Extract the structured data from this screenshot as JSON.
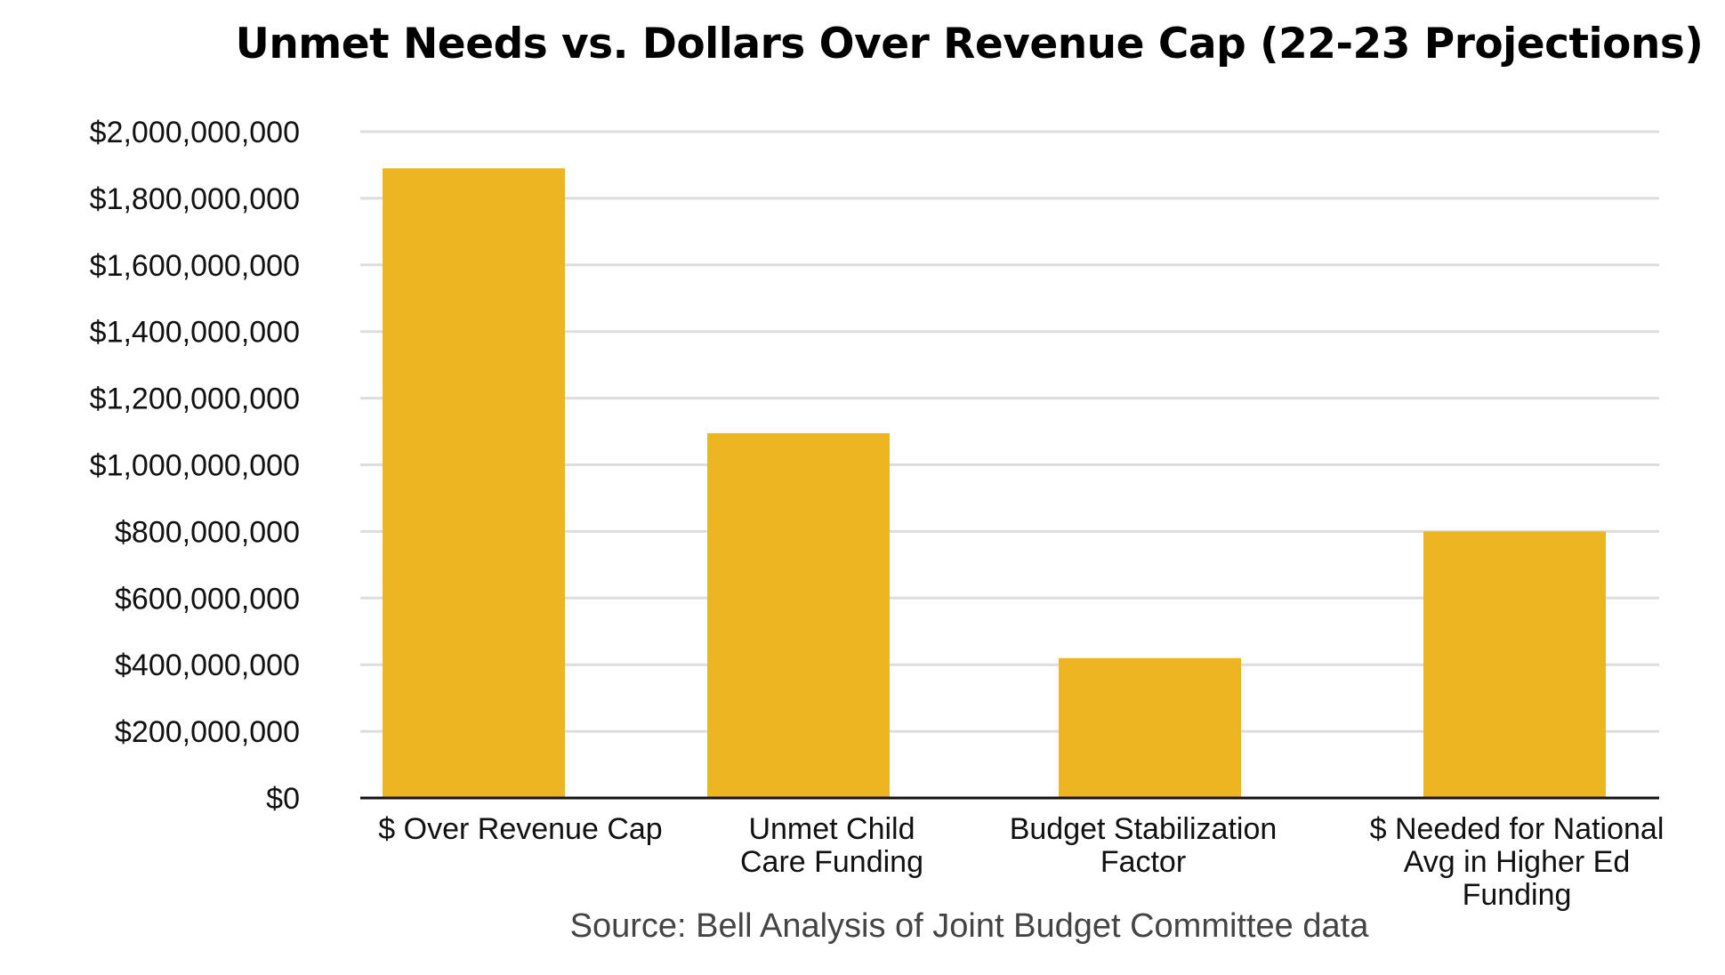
{
  "chart_data": {
    "type": "bar",
    "title": "Unmet Needs vs. Dollars Over Revenue Cap (22-23 Projections)",
    "source": "Source: Bell Analysis of Joint Budget Committee data",
    "categories": [
      "$ Over Revenue Cap",
      "Unmet Child Care Funding",
      "Budget Stabilization Factor",
      "$ Needed for National Avg in Higher Ed Funding"
    ],
    "category_lines": [
      [
        "$ Over Revenue Cap"
      ],
      [
        "Unmet Child",
        "Care Funding"
      ],
      [
        "Budget Stabilization",
        "Factor"
      ],
      [
        "$ Needed for National",
        "Avg in Higher Ed",
        "Funding"
      ]
    ],
    "values": [
      1890000000,
      1095000000,
      420000000,
      800000000
    ],
    "ylim": [
      0,
      2000000000
    ],
    "yticks": [
      0,
      200000000,
      400000000,
      600000000,
      800000000,
      1000000000,
      1200000000,
      1400000000,
      1600000000,
      1800000000,
      2000000000
    ],
    "ytick_labels": [
      "$0",
      "$200,000,000",
      "$400,000,000",
      "$600,000,000",
      "$800,000,000",
      "$1,000,000,000",
      "$1,200,000,000",
      "$1,400,000,000",
      "$1,600,000,000",
      "$1,800,000,000",
      "$2,000,000,000"
    ],
    "xlabel": "",
    "ylabel": "",
    "grid": true,
    "legend": "none",
    "bar_color": "#EDB521",
    "grid_color": "#DDDDDD",
    "axis_color": "#111111"
  }
}
